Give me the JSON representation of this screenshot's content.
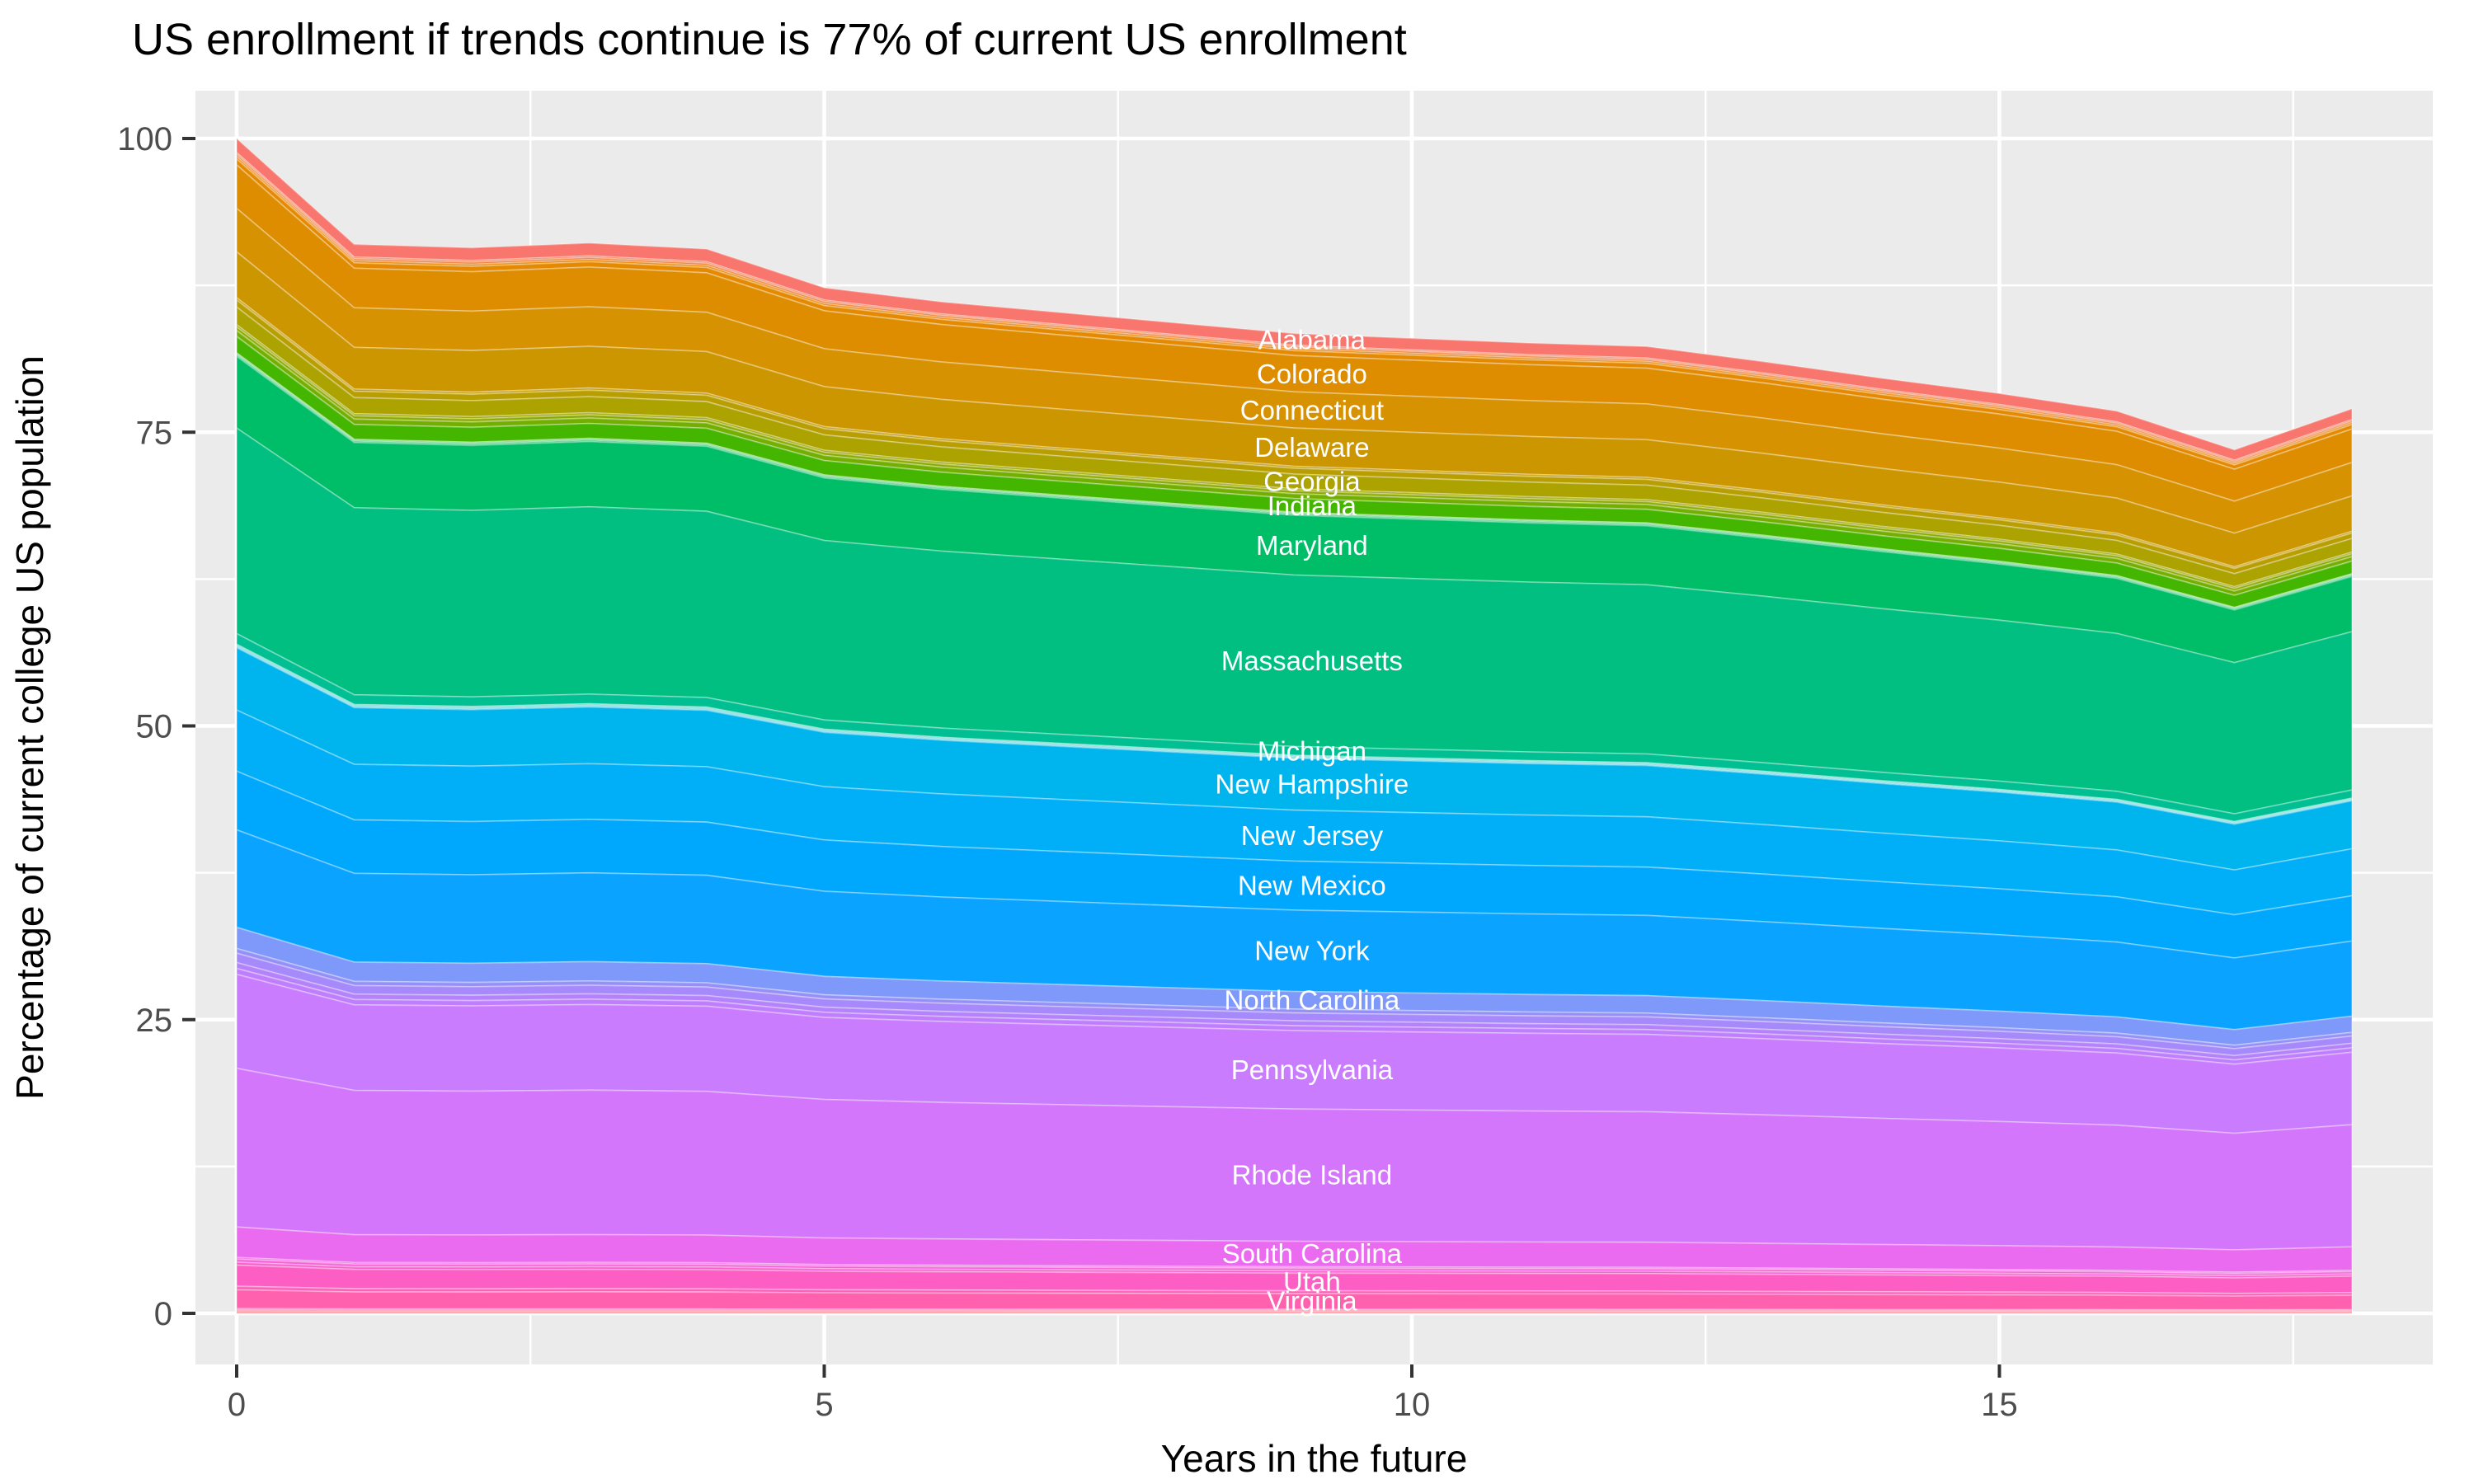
{
  "chart_data": {
    "type": "area",
    "stacked": true,
    "title": "US enrollment if trends continue is 77% of current US enrollment",
    "xlabel": "Years in the future",
    "ylabel": "Percentage of current college US population",
    "x_ticks": [
      0,
      5,
      10,
      15
    ],
    "x_tick_labels": [
      "0",
      "5",
      "10",
      "15"
    ],
    "y_ticks": [
      0,
      25,
      50,
      75,
      100
    ],
    "y_tick_labels": [
      "0",
      "25",
      "50",
      "75",
      "100"
    ],
    "xlim": [
      -0.35,
      18.7
    ],
    "ylim": [
      -4,
      104
    ],
    "grid": "ggplot-white-on-gray",
    "legend_position": "none",
    "label_anchor_year": 9.15,
    "years": [
      0,
      1,
      2,
      3,
      4,
      5,
      6,
      7,
      8,
      9,
      10,
      11,
      12,
      13,
      14,
      15,
      16,
      17,
      18
    ],
    "total_pct": [
      100,
      91,
      90.7,
      91.1,
      90.6,
      87.3,
      86.1,
      85.2,
      84.3,
      83.4,
      83.0,
      82.6,
      82.3,
      81.0,
      79.6,
      78.3,
      76.8,
      73.5,
      77.0
    ],
    "value_rule": "series value at year t = share_pct * total_pct[t] / 100 ; bands stacked alphabetically, first series on top",
    "final_total_pct": 77,
    "series": [
      {
        "name": "Alabama",
        "labeled": true,
        "share_pct": 1.2,
        "color": "#F8766D"
      },
      {
        "name": "",
        "labeled": false,
        "share_pct": 0.15,
        "color": "#F47B51"
      },
      {
        "name": "",
        "labeled": false,
        "share_pct": 0.2,
        "color": "#EF8038"
      },
      {
        "name": "",
        "labeled": false,
        "share_pct": 0.2,
        "color": "#EA8500"
      },
      {
        "name": "",
        "labeled": false,
        "share_pct": 0.5,
        "color": "#E48900"
      },
      {
        "name": "Colorado",
        "labeled": true,
        "share_pct": 3.7,
        "color": "#DE8D00"
      },
      {
        "name": "Connecticut",
        "labeled": true,
        "share_pct": 3.7,
        "color": "#D69200"
      },
      {
        "name": "Delaware",
        "labeled": true,
        "share_pct": 3.9,
        "color": "#CC9600"
      },
      {
        "name": "",
        "labeled": false,
        "share_pct": 0.2,
        "color": "#C39A00"
      },
      {
        "name": "",
        "labeled": false,
        "share_pct": 0.6,
        "color": "#B89E00"
      },
      {
        "name": "Georgia",
        "labeled": true,
        "share_pct": 1.5,
        "color": "#ACA200"
      },
      {
        "name": "",
        "labeled": false,
        "share_pct": 0.2,
        "color": "#9EA700"
      },
      {
        "name": "",
        "labeled": false,
        "share_pct": 0.3,
        "color": "#8CAA00"
      },
      {
        "name": "",
        "labeled": false,
        "share_pct": 0.5,
        "color": "#72AF00"
      },
      {
        "name": "Indiana",
        "labeled": true,
        "share_pct": 1.4,
        "color": "#44B600"
      },
      {
        "name": "",
        "labeled": false,
        "share_pct": 0.05,
        "color": "#21B900"
      },
      {
        "name": "",
        "labeled": false,
        "share_pct": 0.05,
        "color": "#00BA2E"
      },
      {
        "name": "",
        "labeled": false,
        "share_pct": 0.05,
        "color": "#00BB45"
      },
      {
        "name": "",
        "labeled": false,
        "share_pct": 0.05,
        "color": "#00BC4F"
      },
      {
        "name": "",
        "labeled": false,
        "share_pct": 0.1,
        "color": "#00BC58"
      },
      {
        "name": "Maryland",
        "labeled": true,
        "share_pct": 6.1,
        "color": "#00BD68"
      },
      {
        "name": "Massachusetts",
        "labeled": true,
        "share_pct": 17.5,
        "color": "#00BF80"
      },
      {
        "name": "Michigan",
        "labeled": true,
        "share_pct": 0.9,
        "color": "#00BF93"
      },
      {
        "name": "",
        "labeled": false,
        "share_pct": 0.05,
        "color": "#00BFA3"
      },
      {
        "name": "",
        "labeled": false,
        "share_pct": 0.05,
        "color": "#00BFB2"
      },
      {
        "name": "",
        "labeled": false,
        "share_pct": 0.05,
        "color": "#00BFC0"
      },
      {
        "name": "",
        "labeled": false,
        "share_pct": 0.05,
        "color": "#00BECD"
      },
      {
        "name": "",
        "labeled": false,
        "share_pct": 0.05,
        "color": "#00BCD9"
      },
      {
        "name": "",
        "labeled": false,
        "share_pct": 0.05,
        "color": "#00B9E3"
      },
      {
        "name": "New Hampshire",
        "labeled": true,
        "share_pct": 5.3,
        "color": "#00B5ED"
      },
      {
        "name": "New Jersey",
        "labeled": true,
        "share_pct": 5.2,
        "color": "#00AFF7"
      },
      {
        "name": "New Mexico",
        "labeled": true,
        "share_pct": 5.0,
        "color": "#00A8FD"
      },
      {
        "name": "New York",
        "labeled": true,
        "share_pct": 8.3,
        "color": "#0AA3FF"
      },
      {
        "name": "North Carolina",
        "labeled": true,
        "share_pct": 1.8,
        "color": "#7E99FA"
      },
      {
        "name": "",
        "labeled": false,
        "share_pct": 0.4,
        "color": "#9590F8"
      },
      {
        "name": "",
        "labeled": false,
        "share_pct": 0.8,
        "color": "#A689FA"
      },
      {
        "name": "",
        "labeled": false,
        "share_pct": 0.5,
        "color": "#B483FC"
      },
      {
        "name": "",
        "labeled": false,
        "share_pct": 0.5,
        "color": "#BF7EFE"
      },
      {
        "name": "Pennsylvania",
        "labeled": true,
        "share_pct": 8.0,
        "color": "#C97CFE"
      },
      {
        "name": "Rhode Island",
        "labeled": true,
        "share_pct": 13.5,
        "color": "#D476FB"
      },
      {
        "name": "South Carolina",
        "labeled": true,
        "share_pct": 2.6,
        "color": "#EA6BEF"
      },
      {
        "name": "",
        "labeled": false,
        "share_pct": 0.15,
        "color": "#F163E1"
      },
      {
        "name": "",
        "labeled": false,
        "share_pct": 0.25,
        "color": "#F660D8"
      },
      {
        "name": "",
        "labeled": false,
        "share_pct": 0.25,
        "color": "#FA5FCE"
      },
      {
        "name": "Utah",
        "labeled": true,
        "share_pct": 1.8,
        "color": "#FC5EC3"
      },
      {
        "name": "",
        "labeled": false,
        "share_pct": 0.3,
        "color": "#FE5FB9"
      },
      {
        "name": "Virginia",
        "labeled": true,
        "share_pct": 1.6,
        "color": "#FF61AE"
      },
      {
        "name": "",
        "labeled": false,
        "share_pct": 0.1,
        "color": "#FF66A2"
      },
      {
        "name": "",
        "labeled": false,
        "share_pct": 0.1,
        "color": "#FF6B95"
      },
      {
        "name": "",
        "labeled": false,
        "share_pct": 0.1,
        "color": "#FF7088"
      },
      {
        "name": "",
        "labeled": false,
        "share_pct": 0.1,
        "color": "#FC767B"
      }
    ]
  },
  "style": {
    "panel_bg": "#EBEBEB",
    "grid_color": "#FFFFFF",
    "tick_color": "#333333",
    "tick_label_color": "#4D4D4D",
    "title_color": "#000000",
    "band_label_color": "#FFFFFF",
    "band_outline": "rgba(255,255,255,0.30)"
  }
}
